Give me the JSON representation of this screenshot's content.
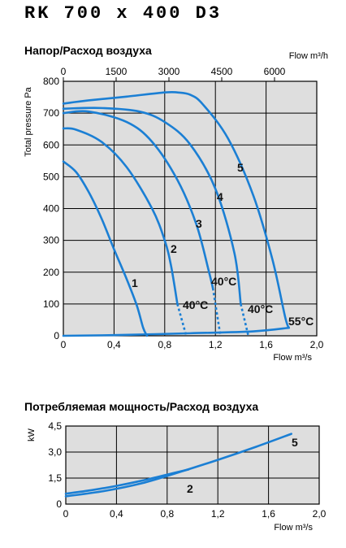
{
  "header": {
    "model": "RK 700 x 400 D3"
  },
  "colors": {
    "curve": "#1b7fd4",
    "grid": "#000000",
    "plot_bg": "#dedede"
  },
  "chart_data": [
    {
      "type": "line",
      "title": "Напор/Расход воздуха",
      "xlabel": "Flow m³/s",
      "ylabel": "Total pressure Pa",
      "x2label": "Flow m³/h",
      "xlim": [
        0,
        2.0
      ],
      "ylim": [
        0,
        800
      ],
      "x2lim": [
        0,
        7200
      ],
      "xticks": [
        "0",
        "0,4",
        "0,8",
        "1,2",
        "1,6",
        "2,0"
      ],
      "xtick_values": [
        0,
        0.4,
        0.8,
        1.2,
        1.6,
        2.0
      ],
      "yticks": [
        "0",
        "100",
        "200",
        "300",
        "400",
        "500",
        "600",
        "700",
        "800"
      ],
      "ytick_values": [
        0,
        100,
        200,
        300,
        400,
        500,
        600,
        700,
        800
      ],
      "x2ticks": [
        "0",
        "1500",
        "3000",
        "4500",
        "6000"
      ],
      "x2tick_values": [
        0,
        1500,
        3000,
        4500,
        6000
      ],
      "grid": true,
      "series": [
        {
          "name": "1",
          "points": [
            [
              0,
              548
            ],
            [
              0.1,
              515
            ],
            [
              0.2,
              452
            ],
            [
              0.3,
              370
            ],
            [
              0.4,
              272
            ],
            [
              0.5,
              178
            ],
            [
              0.58,
              95
            ],
            [
              0.63,
              25
            ],
            [
              0.66,
              0
            ]
          ]
        },
        {
          "name": "2",
          "points": [
            [
              0,
              652
            ],
            [
              0.1,
              648
            ],
            [
              0.3,
              610
            ],
            [
              0.5,
              530
            ],
            [
              0.7,
              400
            ],
            [
              0.8,
              300
            ],
            [
              0.85,
              220
            ],
            [
              0.9,
              100
            ]
          ],
          "dashed_tail": [
            [
              0.9,
              100
            ],
            [
              0.97,
              0
            ]
          ]
        },
        {
          "name": "3",
          "points": [
            [
              0,
              700
            ],
            [
              0.2,
              705
            ],
            [
              0.5,
              672
            ],
            [
              0.7,
              610
            ],
            [
              0.9,
              490
            ],
            [
              1.05,
              350
            ],
            [
              1.15,
              200
            ],
            [
              1.18,
              150
            ]
          ],
          "dashed_tail": [
            [
              1.18,
              150
            ],
            [
              1.24,
              0
            ]
          ]
        },
        {
          "name": "4",
          "points": [
            [
              0,
              714
            ],
            [
              0.3,
              716
            ],
            [
              0.6,
              705
            ],
            [
              0.8,
              672
            ],
            [
              1.0,
              602
            ],
            [
              1.2,
              462
            ],
            [
              1.35,
              260
            ],
            [
              1.4,
              100
            ]
          ],
          "dashed_tail": [
            [
              1.4,
              100
            ],
            [
              1.46,
              0
            ]
          ]
        },
        {
          "name": "5",
          "points": [
            [
              0,
              730
            ],
            [
              0.2,
              740
            ],
            [
              0.5,
              752
            ],
            [
              0.8,
              765
            ],
            [
              0.9,
              765
            ],
            [
              1.0,
              758
            ],
            [
              1.1,
              728
            ],
            [
              1.3,
              620
            ],
            [
              1.5,
              440
            ],
            [
              1.65,
              240
            ],
            [
              1.75,
              60
            ],
            [
              1.78,
              25
            ]
          ]
        },
        {
          "name": "55°C",
          "points": [
            [
              0,
              0
            ],
            [
              0.4,
              2
            ],
            [
              1.0,
              8
            ],
            [
              1.5,
              14
            ],
            [
              1.78,
              25
            ]
          ]
        }
      ],
      "annotations": [
        "1",
        "2",
        "3",
        "4",
        "5",
        "40°C",
        "40°C",
        "40°C",
        "55°C"
      ]
    },
    {
      "type": "line",
      "title": "Потребляемая мощность/Расход воздуха",
      "xlabel": "Flow m³/s",
      "ylabel": "kW",
      "xlim": [
        0,
        2.0
      ],
      "ylim": [
        0,
        4.5
      ],
      "xticks": [
        "0",
        "0,4",
        "0,8",
        "1,2",
        "1,6",
        "2,0"
      ],
      "xtick_values": [
        0,
        0.4,
        0.8,
        1.2,
        1.6,
        2.0
      ],
      "yticks": [
        "0",
        "1,5",
        "3,0",
        "4,5"
      ],
      "ytick_values": [
        0,
        1.5,
        3.0,
        4.5
      ],
      "grid": true,
      "series": [
        {
          "name": "2",
          "points": [
            [
              0,
              0.6
            ],
            [
              0.2,
              0.8
            ],
            [
              0.4,
              1.05
            ],
            [
              0.6,
              1.35
            ],
            [
              0.8,
              1.7
            ],
            [
              0.97,
              2.0
            ]
          ]
        },
        {
          "name": "5",
          "points": [
            [
              0,
              0.45
            ],
            [
              0.3,
              0.75
            ],
            [
              0.6,
              1.2
            ],
            [
              0.9,
              1.85
            ],
            [
              1.2,
              2.55
            ],
            [
              1.5,
              3.3
            ],
            [
              1.78,
              4.05
            ]
          ]
        }
      ],
      "annotations": [
        "2",
        "5"
      ]
    }
  ]
}
